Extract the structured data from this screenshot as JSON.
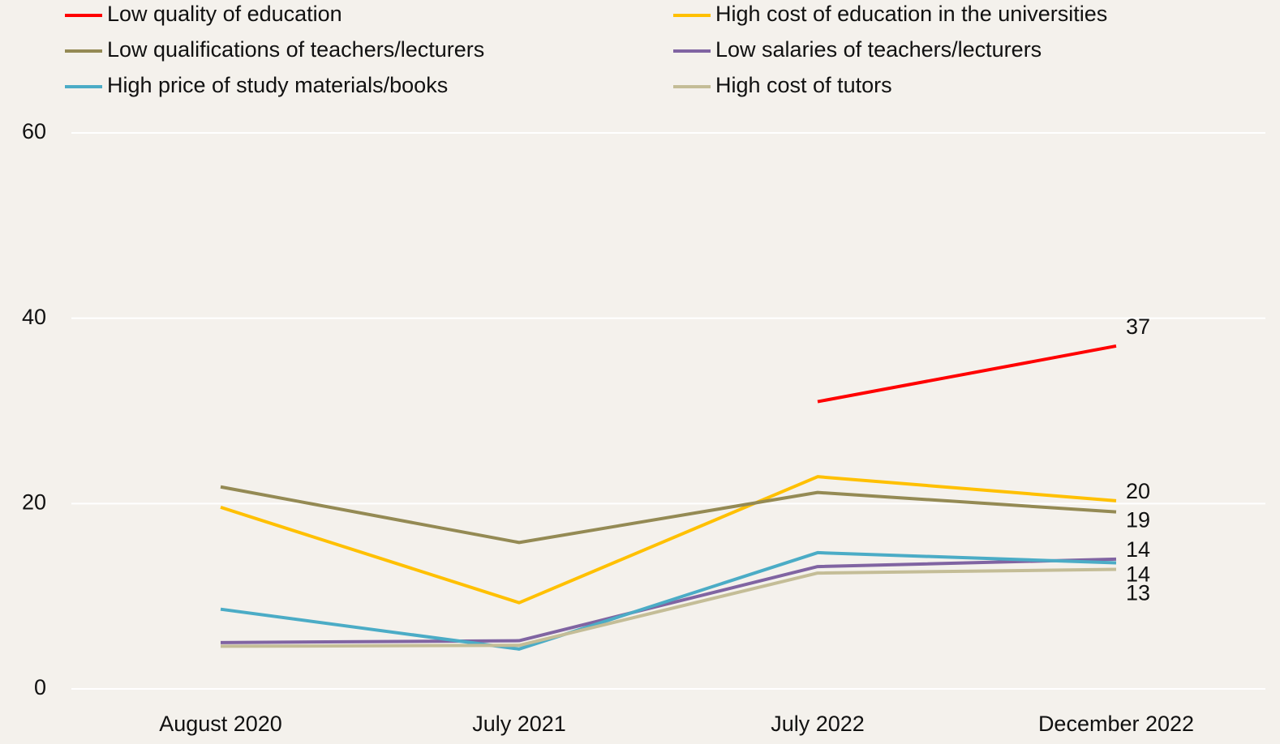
{
  "chart_data": {
    "type": "line",
    "categories": [
      "August 2020",
      "July 2021",
      "July 2022",
      "December 2022"
    ],
    "ylim": [
      0,
      60
    ],
    "yticks": [
      0,
      20,
      40,
      60
    ],
    "grid": true,
    "series": [
      {
        "name": "Low quality of education",
        "color": "#ff0000",
        "values": [
          null,
          null,
          31,
          37
        ],
        "value_labels": [
          null,
          null,
          null,
          "37"
        ]
      },
      {
        "name": "High cost of education in the universities",
        "color": "#ffc000",
        "values": [
          19.6,
          9.3,
          22.9,
          20.3
        ],
        "value_labels": [
          null,
          null,
          null,
          "20"
        ]
      },
      {
        "name": "Low qualifications of teachers/lecturers",
        "color": "#948a54",
        "values": [
          21.8,
          15.8,
          21.2,
          19.1
        ],
        "value_labels": [
          null,
          null,
          null,
          "19"
        ]
      },
      {
        "name": "Low salaries of teachers/lecturers",
        "color": "#8064a2",
        "values": [
          5.0,
          5.2,
          13.2,
          14.0
        ],
        "value_labels": [
          null,
          null,
          null,
          "14"
        ]
      },
      {
        "name": "High price of study materials/books",
        "color": "#4bacc6",
        "values": [
          8.6,
          4.3,
          14.7,
          13.6
        ],
        "value_labels": [
          null,
          null,
          null,
          "14"
        ]
      },
      {
        "name": "High cost of tutors",
        "color": "#c4bd97",
        "values": [
          4.6,
          4.7,
          12.5,
          12.9
        ],
        "value_labels": [
          null,
          null,
          null,
          "13"
        ]
      }
    ]
  }
}
